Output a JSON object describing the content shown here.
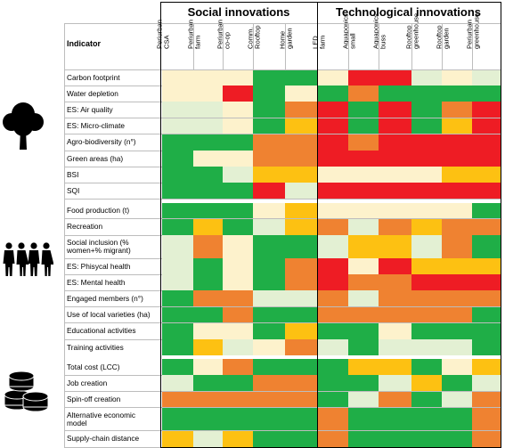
{
  "groups": [
    {
      "title": "Social innovations"
    },
    {
      "title": "Technological innovations"
    }
  ],
  "indicator_header": "Indicator",
  "columns": [
    "Periurban\nCSA",
    "Periurban\nfarm",
    "Periurban\nco-op",
    "Comm.\nRooftop",
    "Home\ngarden",
    "LED\nfarm",
    "Aquaponics\nsmall",
    "Aquaponics\nbuss",
    "Rooftop\ngreenhouse",
    "Rooftop\ngarden",
    "Periurban\ngreenhouse"
  ],
  "palette": {
    "G": "#1fae47",
    "L": "#e3f0d3",
    "C": "#fdf2cc",
    "Y": "#fdc112",
    "O": "#ef8231",
    "R": "#ee1c24"
  },
  "row_groups": [
    {
      "icon": "tree-icon",
      "rows": [
        {
          "label": "Carbon footprint",
          "cells": [
            "C",
            "C",
            "C",
            "G",
            "G",
            "C",
            "R",
            "R",
            "L",
            "C",
            "L"
          ]
        },
        {
          "label": "Water depletion",
          "cells": [
            "C",
            "C",
            "R",
            "G",
            "C",
            "G",
            "O",
            "G",
            "G",
            "G",
            "G"
          ]
        },
        {
          "label": "ES: Air quality",
          "cells": [
            "L",
            "L",
            "C",
            "G",
            "O",
            "R",
            "G",
            "R",
            "G",
            "O",
            "R"
          ]
        },
        {
          "label": "ES: Micro-climate",
          "cells": [
            "L",
            "L",
            "C",
            "G",
            "Y",
            "R",
            "G",
            "R",
            "G",
            "Y",
            "R"
          ]
        },
        {
          "label": "Agro-biodiversity (n°)",
          "cells": [
            "G",
            "G",
            "G",
            "O",
            "O",
            "R",
            "O",
            "R",
            "R",
            "R",
            "R"
          ]
        },
        {
          "label": "Green areas (ha)",
          "cells": [
            "G",
            "C",
            "C",
            "O",
            "O",
            "R",
            "R",
            "R",
            "R",
            "R",
            "R"
          ]
        },
        {
          "label": "BSI",
          "cells": [
            "G",
            "G",
            "L",
            "Y",
            "Y",
            "C",
            "C",
            "C",
            "C",
            "Y",
            "Y"
          ]
        },
        {
          "label": "SQI",
          "cells": [
            "G",
            "G",
            "G",
            "R",
            "L",
            "R",
            "R",
            "R",
            "R",
            "R",
            "R"
          ]
        }
      ]
    },
    {
      "icon": "people-icon",
      "rows": [
        {
          "label": "Food production (t)",
          "cells": [
            "G",
            "G",
            "G",
            "C",
            "Y",
            "C",
            "C",
            "C",
            "C",
            "C",
            "G"
          ]
        },
        {
          "label": "Recreation",
          "cells": [
            "G",
            "Y",
            "G",
            "L",
            "Y",
            "O",
            "L",
            "O",
            "Y",
            "O",
            "O"
          ]
        },
        {
          "label": "Social inclusion (%\nwomen+% migrant)",
          "cells": [
            "L",
            "O",
            "C",
            "G",
            "G",
            "L",
            "Y",
            "Y",
            "L",
            "O",
            "G"
          ],
          "tall": true
        },
        {
          "label": "ES: Phisycal health",
          "cells": [
            "L",
            "G",
            "C",
            "G",
            "O",
            "R",
            "C",
            "R",
            "Y",
            "Y",
            "Y"
          ]
        },
        {
          "label": "ES: Mental health",
          "cells": [
            "L",
            "G",
            "C",
            "G",
            "O",
            "R",
            "O",
            "O",
            "R",
            "R",
            "R"
          ]
        },
        {
          "label": "Engaged members (n°)",
          "cells": [
            "G",
            "O",
            "O",
            "L",
            "L",
            "O",
            "L",
            "O",
            "O",
            "O",
            "O"
          ]
        },
        {
          "label": "Use of local varieties (ha)",
          "cells": [
            "G",
            "G",
            "O",
            "G",
            "G",
            "O",
            "O",
            "O",
            "O",
            "O",
            "G"
          ]
        },
        {
          "label": "Educational activities",
          "cells": [
            "G",
            "C",
            "C",
            "G",
            "Y",
            "G",
            "G",
            "C",
            "G",
            "G",
            "G"
          ]
        },
        {
          "label": "Training activities",
          "cells": [
            "G",
            "Y",
            "L",
            "C",
            "O",
            "L",
            "G",
            "L",
            "L",
            "L",
            "G"
          ]
        }
      ]
    },
    {
      "icon": "coins-icon",
      "rows": [
        {
          "label": "Total cost (LCC)",
          "cells": [
            "G",
            "C",
            "O",
            "G",
            "G",
            "G",
            "Y",
            "Y",
            "G",
            "C",
            "Y"
          ]
        },
        {
          "label": "Job creation",
          "cells": [
            "L",
            "G",
            "G",
            "O",
            "O",
            "G",
            "G",
            "L",
            "Y",
            "G",
            "L"
          ]
        },
        {
          "label": "Spin-off creation",
          "cells": [
            "O",
            "O",
            "O",
            "O",
            "O",
            "G",
            "L",
            "O",
            "G",
            "L",
            "O"
          ]
        },
        {
          "label": "Alternative economic\nmodel",
          "cells": [
            "G",
            "G",
            "G",
            "G",
            "G",
            "O",
            "G",
            "G",
            "G",
            "G",
            "O"
          ],
          "tall": true
        },
        {
          "label": "Supply-chain distance",
          "cells": [
            "Y",
            "L",
            "Y",
            "G",
            "G",
            "O",
            "G",
            "G",
            "G",
            "G",
            "O"
          ]
        }
      ]
    }
  ]
}
